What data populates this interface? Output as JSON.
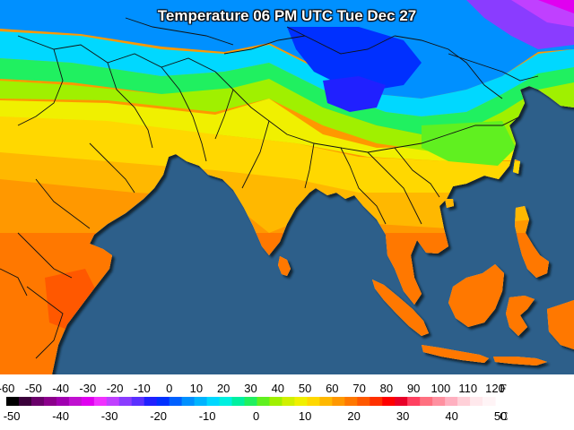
{
  "title": "Temperature 06 PM UTC Tue Dec 27",
  "colors": {
    "ocean": "#2d5f8a",
    "border": "#111111",
    "coast_shadow": "#0b1a28"
  },
  "legend": {
    "fahrenheit_unit": "F",
    "celsius_unit": "C",
    "fahrenheit_ticks": [
      "-60",
      "-50",
      "-40",
      "-30",
      "-20",
      "-10",
      "0",
      "10",
      "20",
      "30",
      "40",
      "50",
      "60",
      "70",
      "80",
      "90",
      "100",
      "110",
      "120"
    ],
    "celsius_ticks": [
      "-50",
      "-40",
      "-30",
      "-20",
      "-10",
      "0",
      "10",
      "20",
      "30",
      "40",
      "50"
    ],
    "color_ramp": [
      "#000000",
      "#3a003a",
      "#6a006a",
      "#8b008b",
      "#a000b0",
      "#c010d0",
      "#e000f0",
      "#f030ff",
      "#c040ff",
      "#8a3cff",
      "#5a30ff",
      "#2020ff",
      "#0030ff",
      "#0060ff",
      "#0090ff",
      "#00b4ff",
      "#00d8ff",
      "#00f0e0",
      "#00f0a0",
      "#20f060",
      "#60f020",
      "#a0f000",
      "#d0f000",
      "#f0f000",
      "#ffd800",
      "#ffb800",
      "#ff9800",
      "#ff7800",
      "#ff5800",
      "#ff3000",
      "#ff0000",
      "#e80028",
      "#ff4060",
      "#ff7080",
      "#ff90a0",
      "#ffb0c0",
      "#ffd0d8",
      "#ffe8ec",
      "#fff4f6"
    ]
  }
}
